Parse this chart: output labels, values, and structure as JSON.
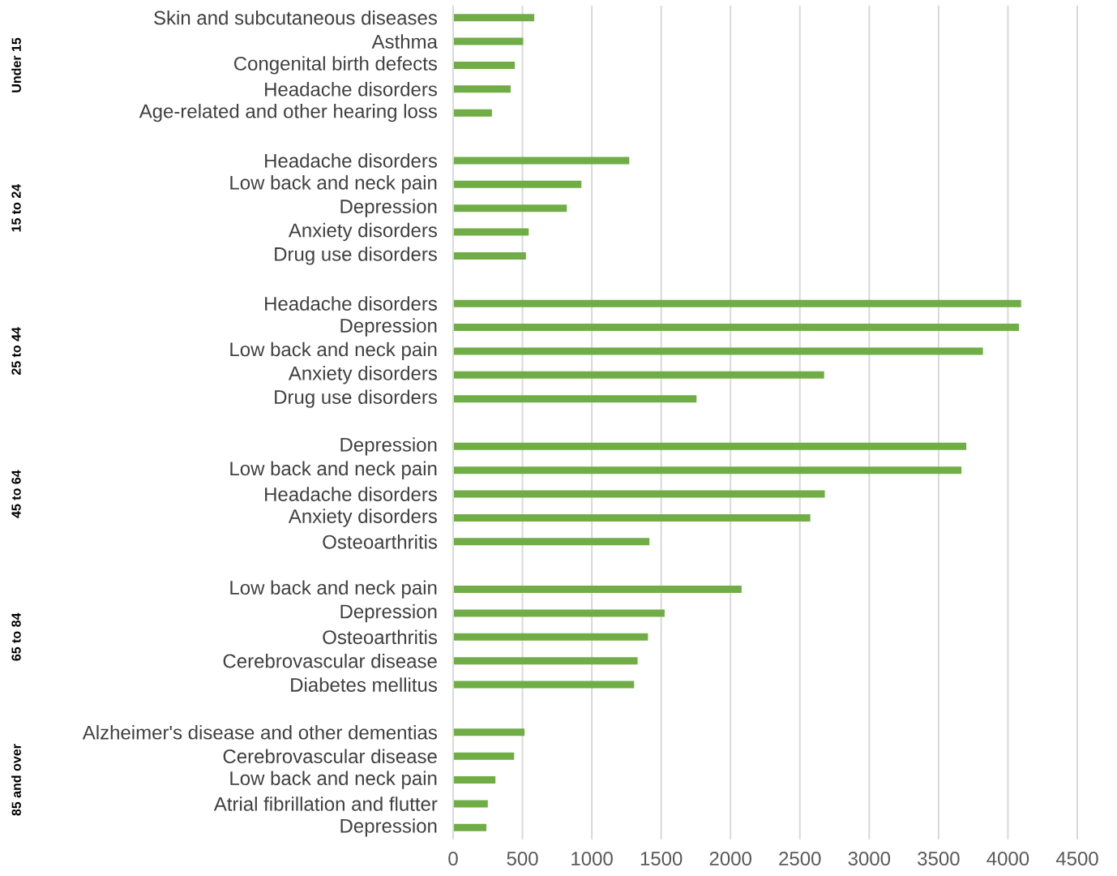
{
  "chart_data": {
    "type": "bar",
    "orientation": "horizontal",
    "color": "#70ad47",
    "categories": [
      "Skin and subcutaneous diseases",
      "Asthma",
      "Congenital birth defects",
      "Headache disorders",
      "Age-related and other hearing loss",
      null,
      "Headache disorders",
      "Low back and neck pain",
      "Depression",
      "Anxiety disorders",
      "Drug use disorders",
      null,
      "Headache disorders",
      "Depression",
      "Low back and neck pain",
      "Anxiety disorders",
      "Drug use disorders",
      null,
      "Depression",
      "Low back and neck pain",
      "Headache disorders",
      "Anxiety disorders",
      "Osteoarthritis",
      null,
      "Low back and neck pain",
      "Depression",
      "Osteoarthritis",
      "Cerebrovascular disease",
      "Diabetes mellitus",
      null,
      "Alzheimer's disease and other dementias",
      "Cerebrovascular disease",
      "Low back and neck pain",
      "Atrial fibrillation and flutter",
      "Depression"
    ],
    "values": [
      585,
      505,
      445,
      415,
      280,
      null,
      1270,
      925,
      820,
      545,
      525,
      null,
      4095,
      4080,
      3820,
      2675,
      1755,
      null,
      3700,
      3665,
      2680,
      2575,
      1415,
      null,
      2080,
      1525,
      1405,
      1330,
      1305,
      null,
      515,
      440,
      305,
      250,
      240
    ],
    "annotations": [
      "Under 15",
      "15 to 24",
      "25 to 44",
      "45 to 64",
      "65 to 84",
      "85 and over"
    ],
    "xlim": [
      0,
      4500
    ],
    "xticks": [
      0,
      500,
      1000,
      1500,
      2000,
      2500,
      3000,
      3500,
      4000,
      4500
    ],
    "grid": "x"
  }
}
